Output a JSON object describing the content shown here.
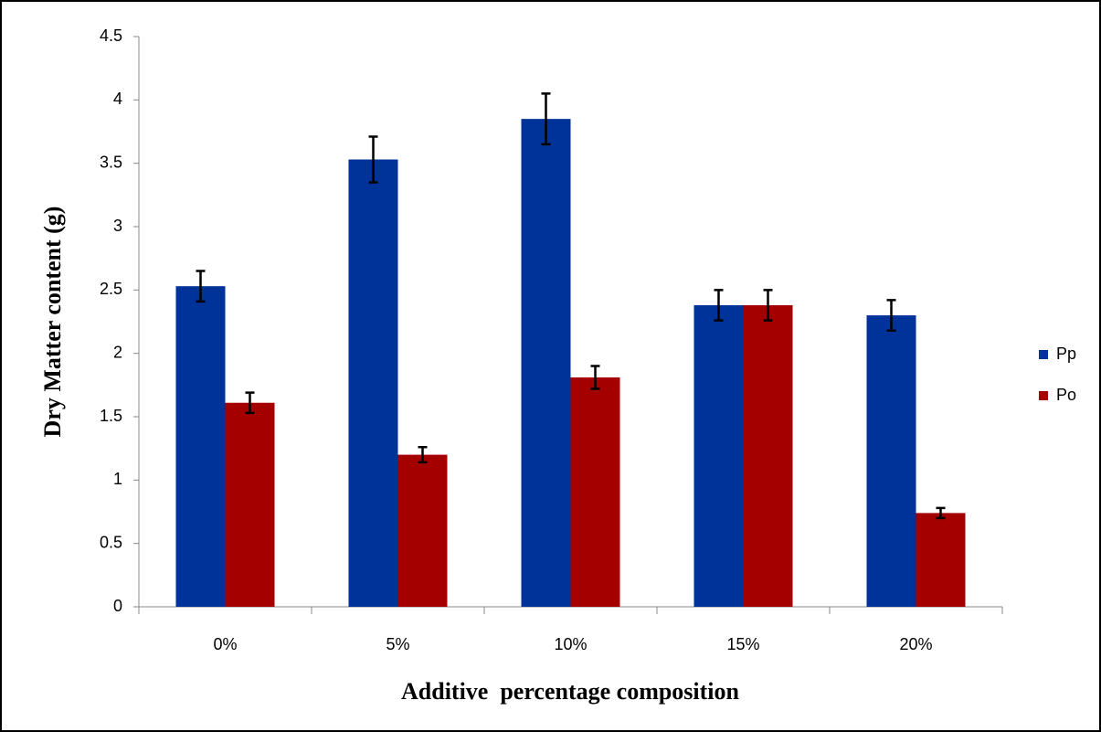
{
  "chart_data": {
    "type": "bar",
    "y_label": "Dry Matter content (g)",
    "x_label": "Additive  percentage composition",
    "categories": [
      "0%",
      "5%",
      "10%",
      "15%",
      "20%"
    ],
    "series": [
      {
        "name": "Pp",
        "color": "#003399",
        "values": [
          2.53,
          3.53,
          3.85,
          2.38,
          2.3
        ],
        "errors": [
          0.12,
          0.18,
          0.2,
          0.12,
          0.12
        ]
      },
      {
        "name": "Po",
        "color": "#a50000",
        "values": [
          1.61,
          1.2,
          1.81,
          2.38,
          0.74
        ],
        "errors": [
          0.08,
          0.06,
          0.09,
          0.12,
          0.04
        ]
      }
    ],
    "ylim": [
      0,
      4.5
    ],
    "yticks": [
      0,
      0.5,
      1,
      1.5,
      2,
      2.5,
      3,
      3.5,
      4,
      4.5
    ],
    "grid": false,
    "legend": "right"
  }
}
